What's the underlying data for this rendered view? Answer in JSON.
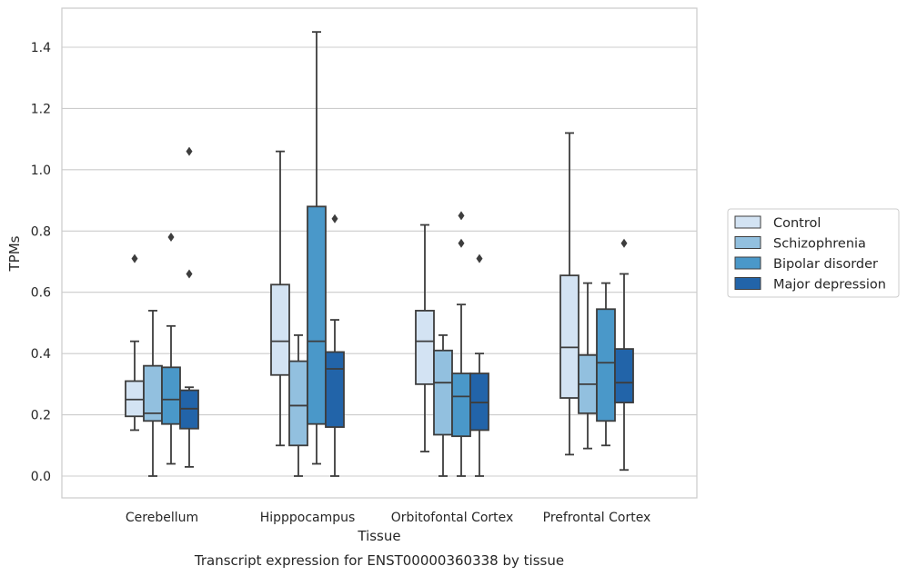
{
  "chart_data": {
    "type": "box",
    "title": "",
    "caption": "Transcript expression for ENST00000360338 by tissue",
    "xlabel": "Tissue",
    "ylabel": "TPMs",
    "ylim": [
      -0.07,
      1.52
    ],
    "yticks": [
      0.0,
      0.2,
      0.4,
      0.6,
      0.8,
      1.0,
      1.2,
      1.4
    ],
    "ytick_labels": [
      "0.0",
      "0.2",
      "0.4",
      "0.6",
      "0.8",
      "1.0",
      "1.2",
      "1.4"
    ],
    "grid": "horizontal",
    "legend_placement": "right",
    "categories": [
      "Cerebellum",
      "Hipppocampus",
      "Orbitofontal Cortex",
      "Prefrontal Cortex"
    ],
    "series": [
      {
        "name": "Control",
        "color": "#d3e3f3",
        "boxes": [
          {
            "whisker_low": 0.15,
            "q1": 0.195,
            "median": 0.25,
            "q3": 0.31,
            "whisker_high": 0.44,
            "outliers": [
              0.71
            ]
          },
          {
            "whisker_low": 0.1,
            "q1": 0.33,
            "median": 0.44,
            "q3": 0.625,
            "whisker_high": 1.06,
            "outliers": []
          },
          {
            "whisker_low": 0.08,
            "q1": 0.3,
            "median": 0.44,
            "q3": 0.54,
            "whisker_high": 0.82,
            "outliers": []
          },
          {
            "whisker_low": 0.07,
            "q1": 0.255,
            "median": 0.42,
            "q3": 0.655,
            "whisker_high": 1.12,
            "outliers": []
          }
        ]
      },
      {
        "name": "Schizophrenia",
        "color": "#92c0df",
        "boxes": [
          {
            "whisker_low": 0.0,
            "q1": 0.18,
            "median": 0.205,
            "q3": 0.36,
            "whisker_high": 0.54,
            "outliers": []
          },
          {
            "whisker_low": 0.0,
            "q1": 0.1,
            "median": 0.23,
            "q3": 0.375,
            "whisker_high": 0.46,
            "outliers": []
          },
          {
            "whisker_low": 0.0,
            "q1": 0.135,
            "median": 0.305,
            "q3": 0.41,
            "whisker_high": 0.46,
            "outliers": []
          },
          {
            "whisker_low": 0.09,
            "q1": 0.205,
            "median": 0.3,
            "q3": 0.395,
            "whisker_high": 0.63,
            "outliers": []
          }
        ]
      },
      {
        "name": "Bipolar disorder",
        "color": "#4a98c9",
        "boxes": [
          {
            "whisker_low": 0.04,
            "q1": 0.17,
            "median": 0.25,
            "q3": 0.355,
            "whisker_high": 0.49,
            "outliers": [
              0.78
            ]
          },
          {
            "whisker_low": 0.04,
            "q1": 0.17,
            "median": 0.44,
            "q3": 0.88,
            "whisker_high": 1.45,
            "outliers": []
          },
          {
            "whisker_low": 0.0,
            "q1": 0.13,
            "median": 0.26,
            "q3": 0.335,
            "whisker_high": 0.56,
            "outliers": [
              0.76,
              0.85
            ]
          },
          {
            "whisker_low": 0.1,
            "q1": 0.18,
            "median": 0.37,
            "q3": 0.545,
            "whisker_high": 0.63,
            "outliers": []
          }
        ]
      },
      {
        "name": "Major depression",
        "color": "#2264a9",
        "boxes": [
          {
            "whisker_low": 0.03,
            "q1": 0.155,
            "median": 0.22,
            "q3": 0.28,
            "whisker_high": 0.29,
            "outliers": [
              0.66,
              1.06
            ]
          },
          {
            "whisker_low": 0.0,
            "q1": 0.16,
            "median": 0.35,
            "q3": 0.405,
            "whisker_high": 0.51,
            "outliers": [
              0.84
            ]
          },
          {
            "whisker_low": 0.0,
            "q1": 0.15,
            "median": 0.24,
            "q3": 0.335,
            "whisker_high": 0.4,
            "outliers": [
              0.71
            ]
          },
          {
            "whisker_low": 0.02,
            "q1": 0.24,
            "median": 0.305,
            "q3": 0.415,
            "whisker_high": 0.66,
            "outliers": [
              0.76
            ]
          }
        ]
      }
    ]
  }
}
